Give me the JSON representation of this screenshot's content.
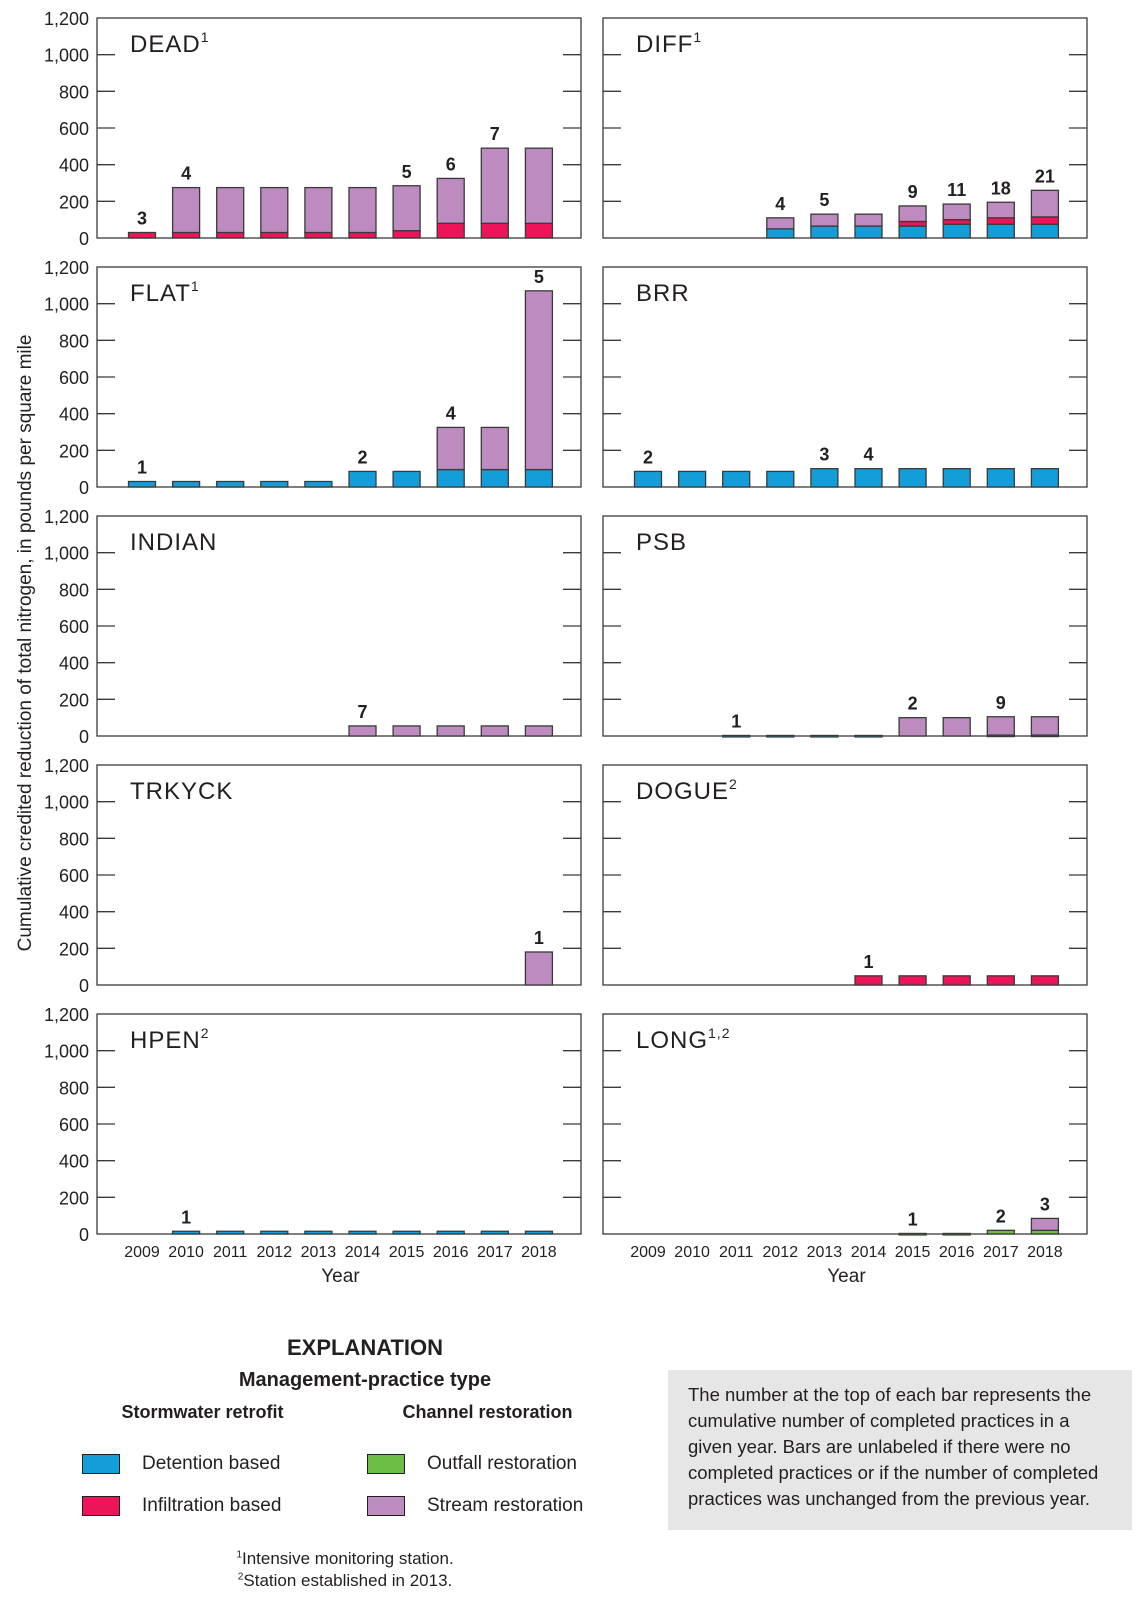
{
  "colors": {
    "detention": "#139ed9",
    "infiltration": "#ed1459",
    "outfall": "#6cbf44",
    "stream": "#bd8bbf",
    "outline": "#3a3a3a"
  },
  "chart_data": {
    "type": "bar",
    "stacked": true,
    "ylabel": "Cumulative credited reduction of total nitrogen, in pounds per square mile",
    "xlabel": "Year",
    "ylim": [
      0,
      1200
    ],
    "yticks": [
      0,
      200,
      400,
      600,
      800,
      1000,
      1200
    ],
    "ytick_labels": [
      "0",
      "200",
      "400",
      "600",
      "800",
      "1,000",
      "1,200"
    ],
    "categories": [
      "2009",
      "2010",
      "2011",
      "2012",
      "2013",
      "2014",
      "2015",
      "2016",
      "2017",
      "2018"
    ],
    "series_order": [
      "detention",
      "infiltration",
      "outfall",
      "stream"
    ],
    "panels": [
      {
        "name": "DEAD",
        "sup": "1",
        "series": {
          "detention": [
            0,
            0,
            0,
            0,
            0,
            0,
            0,
            0,
            0,
            0
          ],
          "infiltration": [
            30,
            30,
            30,
            30,
            30,
            30,
            40,
            80,
            80,
            80
          ],
          "outfall": [
            0,
            0,
            0,
            0,
            0,
            0,
            0,
            0,
            0,
            0
          ],
          "stream": [
            0,
            245,
            245,
            245,
            245,
            245,
            245,
            245,
            410,
            410
          ]
        },
        "labels": [
          "3",
          "4",
          "",
          "",
          "",
          "",
          "5",
          "6",
          "7",
          ""
        ]
      },
      {
        "name": "DIFF",
        "sup": "1",
        "series": {
          "detention": [
            0,
            0,
            0,
            50,
            65,
            65,
            65,
            75,
            75,
            75
          ],
          "infiltration": [
            0,
            0,
            0,
            0,
            0,
            0,
            25,
            25,
            35,
            40
          ],
          "outfall": [
            0,
            0,
            0,
            0,
            0,
            0,
            0,
            0,
            0,
            0
          ],
          "stream": [
            0,
            0,
            0,
            60,
            65,
            65,
            85,
            85,
            85,
            145
          ]
        },
        "labels": [
          "",
          "",
          "",
          "4",
          "5",
          "",
          "9",
          "11",
          "18",
          "21"
        ]
      },
      {
        "name": "FLAT",
        "sup": "1",
        "series": {
          "detention": [
            30,
            30,
            30,
            30,
            30,
            85,
            85,
            95,
            95,
            95
          ],
          "infiltration": [
            0,
            0,
            0,
            0,
            0,
            0,
            0,
            0,
            0,
            0
          ],
          "outfall": [
            0,
            0,
            0,
            0,
            0,
            0,
            0,
            0,
            0,
            0
          ],
          "stream": [
            0,
            0,
            0,
            0,
            0,
            0,
            0,
            230,
            230,
            975
          ]
        },
        "labels": [
          "1",
          "",
          "",
          "",
          "",
          "2",
          "",
          "4",
          "",
          "5"
        ]
      },
      {
        "name": "BRR",
        "sup": "",
        "series": {
          "detention": [
            85,
            85,
            85,
            85,
            100,
            100,
            100,
            100,
            100,
            100
          ],
          "infiltration": [
            0,
            0,
            0,
            0,
            0,
            0,
            0,
            0,
            0,
            0
          ],
          "outfall": [
            0,
            0,
            0,
            0,
            0,
            0,
            0,
            0,
            0,
            0
          ],
          "stream": [
            0,
            0,
            0,
            0,
            0,
            0,
            0,
            0,
            0,
            0
          ]
        },
        "labels": [
          "2",
          "",
          "",
          "",
          "3",
          "4",
          "",
          "",
          "",
          ""
        ]
      },
      {
        "name": "INDIAN",
        "sup": "",
        "series": {
          "detention": [
            0,
            0,
            0,
            0,
            0,
            0,
            0,
            0,
            0,
            0
          ],
          "infiltration": [
            0,
            0,
            0,
            0,
            0,
            0,
            0,
            0,
            0,
            0
          ],
          "outfall": [
            0,
            0,
            0,
            0,
            0,
            0,
            0,
            0,
            0,
            0
          ],
          "stream": [
            0,
            0,
            0,
            0,
            0,
            55,
            55,
            55,
            55,
            55
          ]
        },
        "labels": [
          "",
          "",
          "",
          "",
          "",
          "7",
          "",
          "",
          "",
          ""
        ]
      },
      {
        "name": "PSB",
        "sup": "",
        "series": {
          "detention": [
            0,
            0,
            3,
            3,
            3,
            3,
            0,
            0,
            5,
            5
          ],
          "infiltration": [
            0,
            0,
            0,
            0,
            0,
            0,
            0,
            0,
            0,
            0
          ],
          "outfall": [
            0,
            0,
            0,
            0,
            0,
            0,
            0,
            0,
            0,
            0
          ],
          "stream": [
            0,
            0,
            0,
            0,
            0,
            0,
            100,
            100,
            100,
            100
          ]
        },
        "labels": [
          "",
          "",
          "1",
          "",
          "",
          "",
          "2",
          "",
          "9",
          ""
        ]
      },
      {
        "name": "TRKYCK",
        "sup": "",
        "series": {
          "detention": [
            0,
            0,
            0,
            0,
            0,
            0,
            0,
            0,
            0,
            0
          ],
          "infiltration": [
            0,
            0,
            0,
            0,
            0,
            0,
            0,
            0,
            0,
            0
          ],
          "outfall": [
            0,
            0,
            0,
            0,
            0,
            0,
            0,
            0,
            0,
            0
          ],
          "stream": [
            0,
            0,
            0,
            0,
            0,
            0,
            0,
            0,
            0,
            180
          ]
        },
        "labels": [
          "",
          "",
          "",
          "",
          "",
          "",
          "",
          "",
          "",
          "1"
        ]
      },
      {
        "name": "DOGUE",
        "sup": "2",
        "series": {
          "detention": [
            0,
            0,
            0,
            0,
            0,
            0,
            0,
            0,
            0,
            0
          ],
          "infiltration": [
            0,
            0,
            0,
            0,
            0,
            50,
            50,
            50,
            50,
            50
          ],
          "outfall": [
            0,
            0,
            0,
            0,
            0,
            0,
            0,
            0,
            0,
            0
          ],
          "stream": [
            0,
            0,
            0,
            0,
            0,
            0,
            0,
            0,
            0,
            0
          ]
        },
        "labels": [
          "",
          "",
          "",
          "",
          "",
          "1",
          "",
          "",
          "",
          ""
        ]
      },
      {
        "name": "HPEN",
        "sup": "2",
        "series": {
          "detention": [
            0,
            15,
            15,
            15,
            15,
            15,
            15,
            15,
            15,
            15
          ],
          "infiltration": [
            0,
            0,
            0,
            0,
            0,
            0,
            0,
            0,
            0,
            0
          ],
          "outfall": [
            0,
            0,
            0,
            0,
            0,
            0,
            0,
            0,
            0,
            0
          ],
          "stream": [
            0,
            0,
            0,
            0,
            0,
            0,
            0,
            0,
            0,
            0
          ]
        },
        "labels": [
          "",
          "1",
          "",
          "",
          "",
          "",
          "",
          "",
          "",
          ""
        ]
      },
      {
        "name": "LONG",
        "sup": "1,2",
        "series": {
          "detention": [
            0,
            0,
            0,
            0,
            0,
            0,
            0,
            0,
            0,
            0
          ],
          "infiltration": [
            0,
            0,
            0,
            0,
            0,
            0,
            0,
            0,
            0,
            0
          ],
          "outfall": [
            0,
            0,
            0,
            0,
            0,
            0,
            3,
            3,
            20,
            20
          ],
          "stream": [
            0,
            0,
            0,
            0,
            0,
            0,
            0,
            0,
            0,
            65
          ]
        },
        "labels": [
          "",
          "",
          "",
          "",
          "",
          "",
          "1",
          "",
          "2",
          "3"
        ]
      }
    ]
  },
  "legend": {
    "title": "EXPLANATION",
    "subtitle": "Management-practice type",
    "groups": [
      {
        "heading": "Stormwater retrofit",
        "items": [
          {
            "key": "detention",
            "label": "Detention based"
          },
          {
            "key": "infiltration",
            "label": "Infiltration based"
          }
        ]
      },
      {
        "heading": "Channel restoration",
        "items": [
          {
            "key": "outfall",
            "label": "Outfall restoration"
          },
          {
            "key": "stream",
            "label": "Stream restoration"
          }
        ]
      }
    ]
  },
  "footnotes": {
    "one_mark": "1",
    "one": "Intensive monitoring station.",
    "two_mark": "2",
    "two": "Station established in 2013."
  },
  "note": "The number at the top of each bar represents the cumulative number of completed practices in a given year. Bars are unlabeled if there were no completed practices or if the number of completed practices was unchanged from the previous year."
}
